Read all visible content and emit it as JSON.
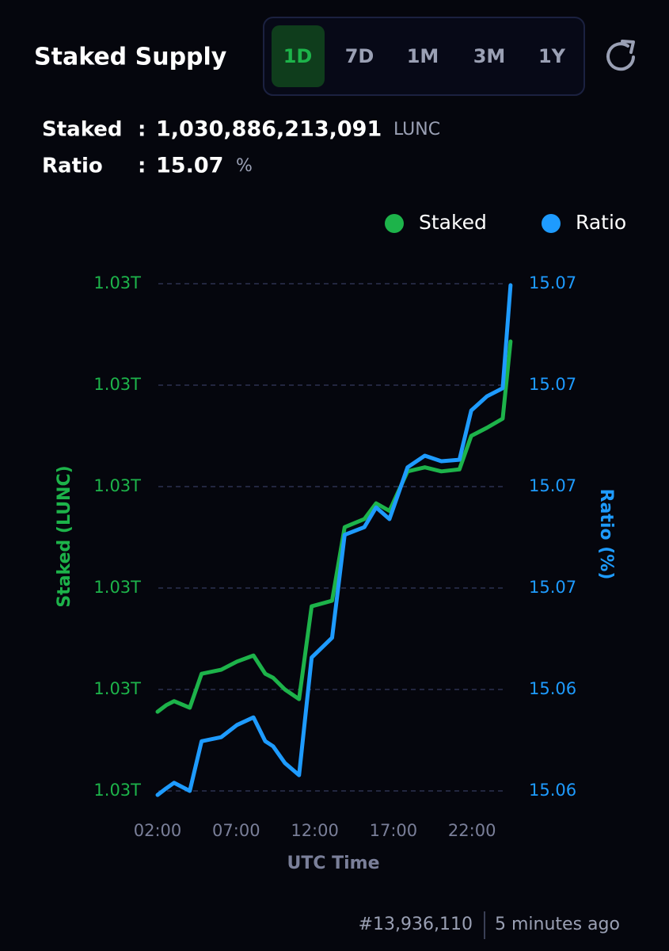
{
  "header": {
    "title": "Staked Supply",
    "tabs": [
      "1D",
      "7D",
      "1M",
      "3M",
      "1Y"
    ],
    "selected_tab": 0
  },
  "stats": {
    "separator": ":",
    "staked": {
      "label": "Staked",
      "value": "1,030,886,213,091",
      "unit": "LUNC"
    },
    "ratio": {
      "label": "Ratio",
      "value": "15.07",
      "unit": "%"
    }
  },
  "chart_data": {
    "type": "line",
    "x": [
      2.0,
      2.55,
      3.05,
      4.05,
      4.8,
      6.05,
      7.05,
      8.1,
      8.85,
      9.35,
      10.1,
      11.0,
      11.8,
      13.1,
      13.9,
      15.15,
      15.9,
      16.75,
      17.9,
      19.0,
      20.05,
      21.2,
      21.95,
      22.95,
      23.95,
      24.45
    ],
    "xlabel": "UTC Time",
    "xlim": [
      2,
      24.5
    ],
    "xticks": [
      {
        "value": 2,
        "label": "02:00"
      },
      {
        "value": 7,
        "label": "07:00"
      },
      {
        "value": 12,
        "label": "12:00"
      },
      {
        "value": 17,
        "label": "17:00"
      },
      {
        "value": 22,
        "label": "22:00"
      }
    ],
    "ylabel": "Staked (LUNC)",
    "ylim": [
      1030000000000,
      1031000000000
    ],
    "yticks": [
      {
        "value": 1030000000000,
        "label": "1.03T"
      },
      {
        "value": 1030200000000,
        "label": "1.03T"
      },
      {
        "value": 1030400000000,
        "label": "1.03T"
      },
      {
        "value": 1030600000000,
        "label": "1.03T"
      },
      {
        "value": 1030800000000,
        "label": "1.03T"
      },
      {
        "value": 1031000000000,
        "label": "1.03T"
      }
    ],
    "y2label": "Ratio (%)",
    "y2lim": [
      15.062,
      15.072
    ],
    "y2ticks": [
      {
        "value": 15.062,
        "label": "15.06"
      },
      {
        "value": 15.064,
        "label": "15.06"
      },
      {
        "value": 15.066,
        "label": "15.07"
      },
      {
        "value": 15.068,
        "label": "15.07"
      },
      {
        "value": 15.07,
        "label": "15.07"
      },
      {
        "value": 15.072,
        "label": "15.07"
      }
    ],
    "grid": true,
    "legend": "top-right",
    "series": [
      {
        "name": "Staked",
        "color": "#1db34a",
        "values": [
          1030156000000,
          1030169000000,
          1030177000000,
          1030164000000,
          1030231000000,
          1030239000000,
          1030255000000,
          1030267000000,
          1030231000000,
          1030223000000,
          1030200000000,
          1030181000000,
          1030364000000,
          1030375000000,
          1030520000000,
          1030536000000,
          1030567000000,
          1030552000000,
          1030630000000,
          1030638000000,
          1030630000000,
          1030634000000,
          1030700000000,
          1030716000000,
          1030734000000,
          1030886213091
        ]
      },
      {
        "name": "Ratio",
        "color": "#1e9bff",
        "axis": "y2",
        "values": [
          15.06192,
          15.06205,
          15.06216,
          15.062,
          15.06298,
          15.06306,
          15.0633,
          15.06345,
          15.06298,
          15.06288,
          15.06255,
          15.06231,
          15.06463,
          15.06502,
          15.06705,
          15.0672,
          15.06759,
          15.06736,
          15.06838,
          15.06861,
          15.0685,
          15.06853,
          15.0695,
          15.06978,
          15.06994,
          15.07197
        ]
      }
    ]
  },
  "footer": {
    "block": "#13,936,110",
    "updated": "5 minutes ago"
  }
}
